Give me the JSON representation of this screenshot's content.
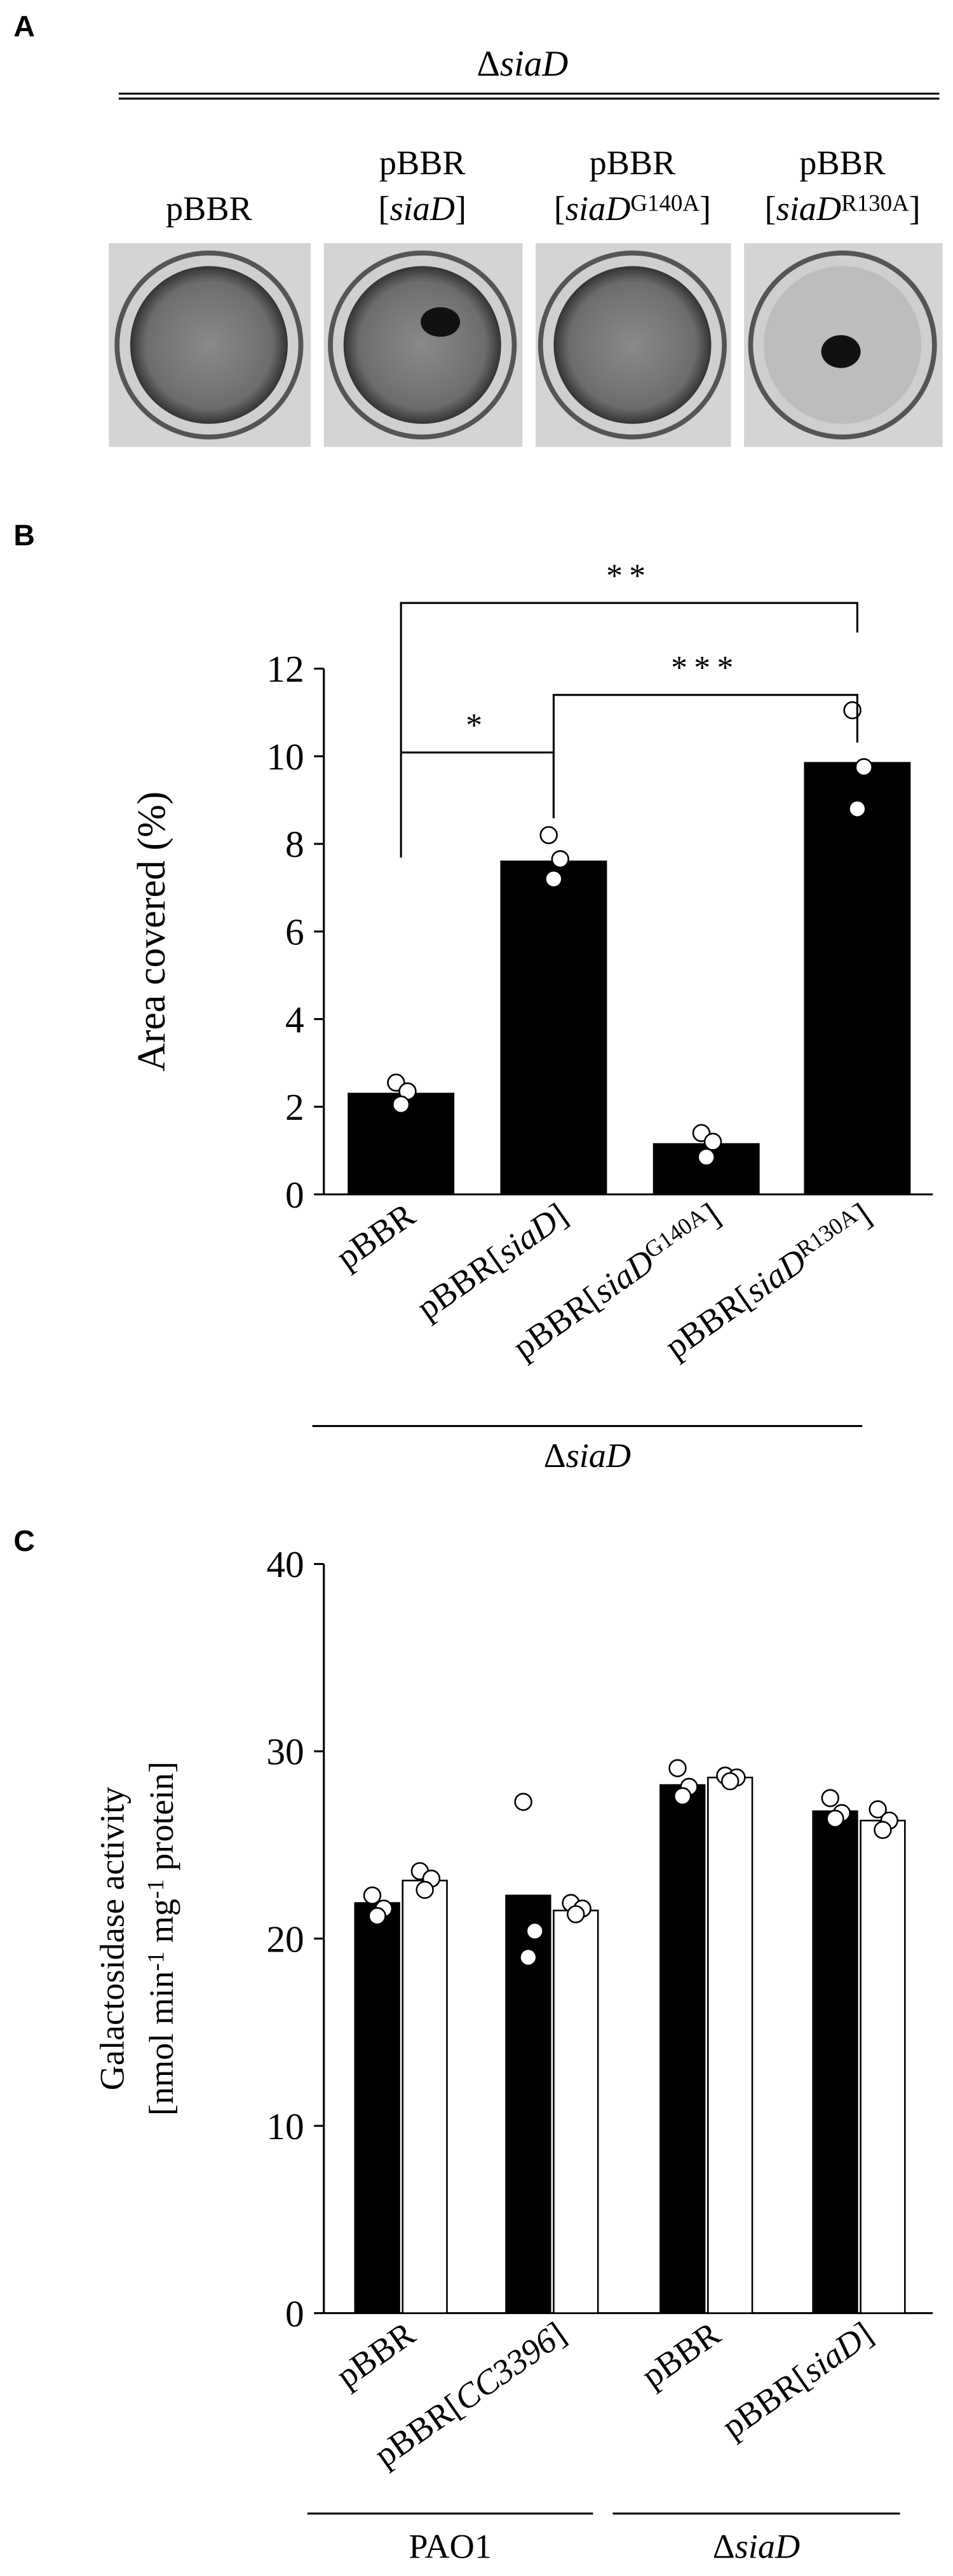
{
  "panel_a": {
    "panel": "A",
    "group_label": "ΔsiaD",
    "wells": [
      [
        "pBBR"
      ],
      [
        "pBBR",
        "[siaD]"
      ],
      [
        "pBBR",
        "[siaDG140A]"
      ],
      [
        "pBBR",
        "[siaDR130A]"
      ]
    ]
  },
  "chart_data": [
    {
      "type": "bar",
      "panel": "B",
      "y_label": "Area covered (%)",
      "categories": [
        "pBBR",
        "pBBR[siaD]",
        "pBBR[siaDG140A]",
        "pBBR[siaDR130A]"
      ],
      "values": [
        2.3,
        7.6,
        1.15,
        9.85
      ],
      "points": [
        [
          2.55,
          2.35,
          2.05
        ],
        [
          8.2,
          7.65,
          7.2
        ],
        [
          1.4,
          1.2,
          0.85
        ],
        [
          11.05,
          9.75,
          8.8
        ]
      ],
      "color": "#000000",
      "ylim": [
        0,
        12
      ],
      "yticks": [
        0,
        2,
        4,
        6,
        8,
        10,
        12
      ],
      "group_labels": [
        {
          "label": "ΔsiaD",
          "categories": [
            0,
            3
          ]
        }
      ],
      "significance": [
        {
          "from": 0,
          "to": 1,
          "label": "*"
        },
        {
          "from": 1,
          "to": 3,
          "label": "***"
        },
        {
          "from": 0,
          "to": 3,
          "label": "**"
        }
      ]
    },
    {
      "type": "grouped_bar",
      "panel": "C",
      "y_label": [
        "Galactosidase activity",
        "[nmol min-1 mg-1 protein]"
      ],
      "categories": [
        "pBBR",
        "pBBR[CC3396]",
        "pBBR",
        "pBBR[siaD]"
      ],
      "series": [
        {
          "color": "#000000",
          "values": [
            21.9,
            22.3,
            28.2,
            26.8
          ],
          "points": [
            [
              22.3,
              21.6,
              21.2
            ],
            [
              27.3,
              20.4,
              19.0
            ],
            [
              29.1,
              28.1,
              27.6
            ],
            [
              27.5,
              26.7,
              26.4
            ]
          ]
        },
        {
          "color": "#ffffff",
          "values": [
            23.1,
            21.5,
            28.6,
            26.3
          ],
          "points": [
            [
              23.6,
              23.2,
              22.6
            ],
            [
              21.9,
              21.6,
              21.3
            ],
            [
              28.7,
              28.6,
              28.4
            ],
            [
              26.9,
              26.3,
              25.8
            ]
          ]
        }
      ],
      "ylim": [
        0,
        40
      ],
      "yticks": [
        0,
        10,
        20,
        30,
        40
      ],
      "group_labels": [
        {
          "label": "PAO1",
          "categories": [
            0,
            1
          ]
        },
        {
          "label": "ΔsiaD",
          "categories": [
            2,
            3
          ]
        }
      ]
    }
  ]
}
